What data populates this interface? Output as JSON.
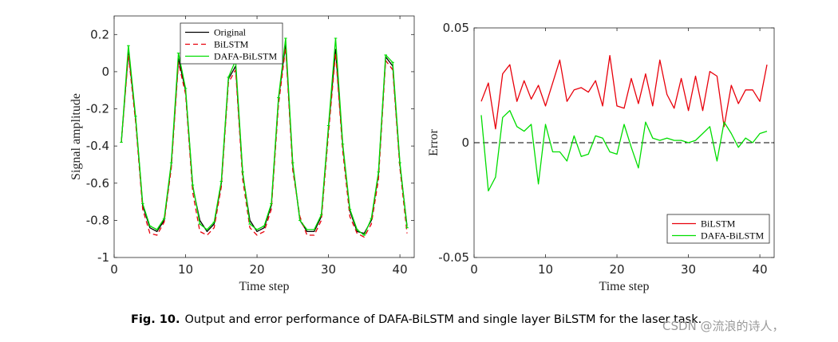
{
  "caption": {
    "label": "Fig. 10.",
    "text": "Output and error performance of DAFA-BiLSTM and single layer BiLSTM for the laser task."
  },
  "watermark": "CSDN @流浪的诗人，",
  "chart_data": [
    {
      "type": "line",
      "title": "",
      "xlabel": "Time step",
      "ylabel": "Signal amplitude",
      "xlim": [
        0,
        42
      ],
      "ylim": [
        -1,
        0.3
      ],
      "xticks": [
        0,
        10,
        20,
        30,
        40
      ],
      "yticks": [
        -1,
        -0.8,
        -0.6,
        -0.4,
        -0.2,
        0,
        0.2
      ],
      "ytick_labels": [
        "-1",
        "-0.8",
        "-0.6",
        "-0.4",
        "-0.2",
        "0",
        "0.2"
      ],
      "legend_position": "top-center",
      "x": [
        1,
        2,
        3,
        4,
        5,
        6,
        7,
        8,
        9,
        10,
        11,
        12,
        13,
        14,
        15,
        16,
        17,
        18,
        19,
        20,
        21,
        22,
        23,
        24,
        25,
        26,
        27,
        28,
        29,
        30,
        31,
        32,
        33,
        34,
        35,
        36,
        37,
        38,
        39,
        40,
        41
      ],
      "series": [
        {
          "name": "Original",
          "color": "#000000",
          "style": "solid",
          "values": [
            -0.38,
            0.11,
            -0.25,
            -0.72,
            -0.84,
            -0.86,
            -0.8,
            -0.5,
            0.07,
            -0.1,
            -0.62,
            -0.8,
            -0.86,
            -0.82,
            -0.6,
            -0.04,
            0.03,
            -0.55,
            -0.8,
            -0.86,
            -0.84,
            -0.72,
            -0.15,
            0.15,
            -0.5,
            -0.8,
            -0.86,
            -0.86,
            -0.78,
            -0.3,
            0.12,
            -0.4,
            -0.75,
            -0.86,
            -0.87,
            -0.8,
            -0.55,
            0.08,
            0.03,
            -0.5,
            -0.83
          ]
        },
        {
          "name": "BiLSTM",
          "color": "#e8000b",
          "style": "dashed",
          "values": [
            -0.38,
            0.09,
            -0.27,
            -0.74,
            -0.87,
            -0.88,
            -0.81,
            -0.52,
            0.05,
            -0.12,
            -0.65,
            -0.86,
            -0.88,
            -0.84,
            -0.62,
            -0.06,
            0.01,
            -0.58,
            -0.84,
            -0.88,
            -0.86,
            -0.74,
            -0.18,
            0.13,
            -0.53,
            -0.78,
            -0.88,
            -0.88,
            -0.8,
            -0.33,
            0.1,
            -0.43,
            -0.78,
            -0.87,
            -0.89,
            -0.82,
            -0.58,
            0.06,
            0.01,
            -0.52,
            -0.87
          ]
        },
        {
          "name": "DAFA-BiLSTM",
          "color": "#00dd00",
          "style": "solid-marker",
          "values": [
            -0.38,
            0.14,
            -0.24,
            -0.71,
            -0.83,
            -0.85,
            -0.79,
            -0.49,
            0.1,
            -0.09,
            -0.61,
            -0.82,
            -0.85,
            -0.81,
            -0.59,
            -0.03,
            0.06,
            -0.54,
            -0.82,
            -0.85,
            -0.83,
            -0.71,
            -0.14,
            0.18,
            -0.49,
            -0.8,
            -0.85,
            -0.85,
            -0.77,
            -0.29,
            0.18,
            -0.39,
            -0.74,
            -0.85,
            -0.88,
            -0.79,
            -0.54,
            0.09,
            0.05,
            -0.49,
            -0.84
          ]
        }
      ]
    },
    {
      "type": "line",
      "title": "",
      "xlabel": "Time step",
      "ylabel": "Error",
      "xlim": [
        0,
        42
      ],
      "ylim": [
        -0.05,
        0.05
      ],
      "xticks": [
        0,
        10,
        20,
        30,
        40
      ],
      "yticks": [
        -0.05,
        0,
        0.05
      ],
      "ytick_labels": [
        "-0.05",
        "0",
        "0.05"
      ],
      "reference_line": {
        "y": 0,
        "style": "dashed",
        "color": "#000000"
      },
      "legend_position": "bottom-right",
      "x": [
        1,
        2,
        3,
        4,
        5,
        6,
        7,
        8,
        9,
        10,
        11,
        12,
        13,
        14,
        15,
        16,
        17,
        18,
        19,
        20,
        21,
        22,
        23,
        24,
        25,
        26,
        27,
        28,
        29,
        30,
        31,
        32,
        33,
        34,
        35,
        36,
        37,
        38,
        39,
        40,
        41
      ],
      "series": [
        {
          "name": "BiLSTM",
          "color": "#e8000b",
          "style": "solid",
          "values": [
            0.018,
            0.026,
            0.006,
            0.03,
            0.034,
            0.018,
            0.027,
            0.019,
            0.025,
            0.016,
            0.026,
            0.036,
            0.018,
            0.023,
            0.024,
            0.022,
            0.027,
            0.016,
            0.038,
            0.016,
            0.015,
            0.028,
            0.017,
            0.03,
            0.016,
            0.036,
            0.021,
            0.015,
            0.028,
            0.014,
            0.029,
            0.014,
            0.031,
            0.029,
            0.007,
            0.025,
            0.017,
            0.023,
            0.023,
            0.018,
            0.034
          ]
        },
        {
          "name": "DAFA-BiLSTM",
          "color": "#00dd00",
          "style": "solid",
          "values": [
            0.012,
            -0.021,
            -0.015,
            0.011,
            0.014,
            0.007,
            0.005,
            0.008,
            -0.018,
            0.008,
            -0.004,
            -0.004,
            -0.008,
            0.003,
            -0.006,
            -0.005,
            0.003,
            0.002,
            -0.004,
            -0.005,
            0.008,
            -0.002,
            -0.011,
            0.009,
            0.002,
            0.001,
            0.002,
            0.001,
            0.001,
            0.0,
            0.001,
            0.004,
            0.007,
            -0.008,
            0.009,
            0.004,
            -0.002,
            0.002,
            0.0,
            0.004,
            0.005
          ]
        }
      ]
    }
  ]
}
